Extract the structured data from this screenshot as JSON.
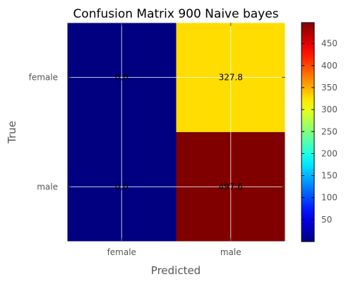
{
  "chart_data": {
    "type": "heatmap",
    "title": "Confusion Matrix 900 Naive bayes",
    "xlabel": "Predicted",
    "ylabel": "True",
    "x_categories": [
      "female",
      "male"
    ],
    "y_categories": [
      "female",
      "male"
    ],
    "values": [
      [
        0.0,
        327.8
      ],
      [
        0.0,
        497.6
      ]
    ],
    "cell_labels": [
      [
        "0.0",
        "327.8"
      ],
      [
        "0.0",
        "497.6"
      ]
    ],
    "colormap": "jet",
    "vmin": 0,
    "vmax": 497.6,
    "colorbar_ticks": [
      50,
      100,
      150,
      200,
      250,
      300,
      350,
      400,
      450
    ],
    "colorbar_tick_labels": [
      "50",
      "100",
      "150",
      "200",
      "250",
      "300",
      "350",
      "400",
      "450"
    ],
    "grid": true
  }
}
